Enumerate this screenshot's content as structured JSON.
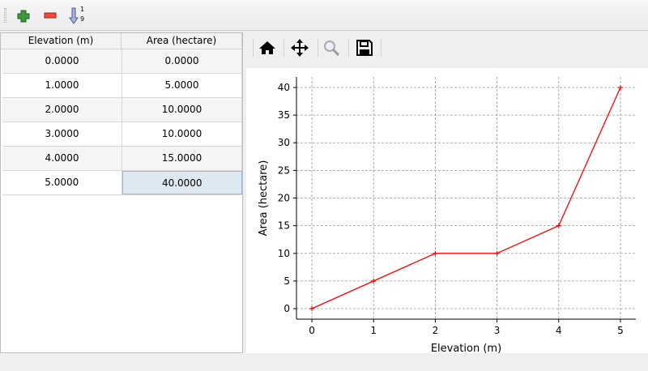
{
  "toolbar": {
    "icons": [
      "add-row-icon",
      "remove-row-icon",
      "sort-ascending-icon"
    ],
    "sort_top": "1",
    "sort_bottom": "9"
  },
  "table": {
    "headers": [
      "Elevation (m)",
      "Area (hectare)"
    ],
    "rows": [
      [
        "0.0000",
        "0.0000"
      ],
      [
        "1.0000",
        "5.0000"
      ],
      [
        "2.0000",
        "10.0000"
      ],
      [
        "3.0000",
        "10.0000"
      ],
      [
        "4.0000",
        "15.0000"
      ],
      [
        "5.0000",
        "40.0000"
      ]
    ],
    "selected_cell": [
      5,
      1
    ]
  },
  "nav_toolbar": {
    "icons": [
      "home-icon",
      "pan-icon",
      "zoom-icon",
      "save-icon"
    ]
  },
  "chart_data": {
    "type": "line",
    "x": [
      0,
      1,
      2,
      3,
      4,
      5
    ],
    "series": [
      {
        "values": [
          0,
          5,
          10,
          10,
          15,
          40
        ],
        "color": "#ff0000",
        "marker": "+"
      }
    ],
    "xlabel": "Elevation (m)",
    "ylabel": "Area (hectare)",
    "xticks": [
      "0",
      "1",
      "2",
      "3",
      "4",
      "5"
    ],
    "yticks": [
      "0",
      "5",
      "10",
      "15",
      "20",
      "25",
      "30",
      "35",
      "40"
    ],
    "xlim": [
      -0.25,
      5.25
    ],
    "ylim": [
      -1.9,
      41.9
    ],
    "grid": true
  }
}
